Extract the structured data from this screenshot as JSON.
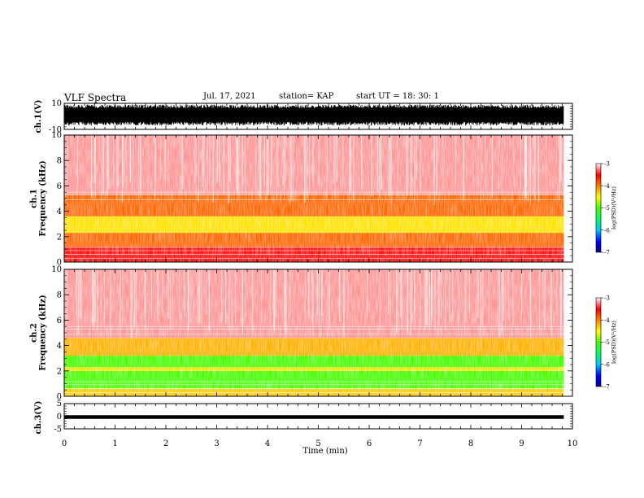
{
  "header": {
    "title": "VLF Spectra",
    "date": "Jul. 17, 2021",
    "station": "station= KAP",
    "start": "start UT =  18: 30: 1"
  },
  "chart_data": [
    {
      "type": "line",
      "panel": "ch1-waveform",
      "ylabel": "ch.1(V)",
      "ylim": [
        -10,
        10
      ],
      "yticks": [
        "10",
        "-10"
      ],
      "description_values": {
        "amplitude_range_V": [
          -7,
          9
        ]
      }
    },
    {
      "type": "heatmap",
      "panel": "ch1-spectrogram",
      "ylabel": "ch.1\nFrequency (kHz)",
      "ylim": [
        0,
        10
      ],
      "yticks": [
        "0",
        "2",
        "4",
        "6",
        "8",
        "10"
      ],
      "colorbar": {
        "label": "log(PSD)(V²/Hz)",
        "ticks": [
          "-3",
          "-4",
          "-5",
          "-6",
          "-7"
        ],
        "range": [
          -7,
          -3
        ]
      },
      "bands_khz": [
        {
          "from": 0.0,
          "to": 1.2,
          "level": -3.5
        },
        {
          "from": 1.2,
          "to": 2.3,
          "level": -3.9
        },
        {
          "from": 2.3,
          "to": 3.6,
          "level": -4.4
        },
        {
          "from": 3.6,
          "to": 5.3,
          "level": -3.9
        },
        {
          "from": 5.3,
          "to": 10.0,
          "level": -3.2
        }
      ]
    },
    {
      "type": "heatmap",
      "panel": "ch2-spectrogram",
      "ylabel": "ch.2\nFrequency (kHz)",
      "ylim": [
        0,
        10
      ],
      "yticks": [
        "0",
        "2",
        "4",
        "6",
        "8",
        "10"
      ],
      "colorbar": {
        "label": "log(PSD)(V²/Hz)",
        "ticks": [
          "-3",
          "-4",
          "-5",
          "-6",
          "-7"
        ],
        "range": [
          -7,
          -3
        ]
      },
      "bands_khz": [
        {
          "from": 0.0,
          "to": 0.6,
          "level": -4.3
        },
        {
          "from": 0.6,
          "to": 2.0,
          "level": -5.0
        },
        {
          "from": 2.0,
          "to": 2.3,
          "level": -4.4
        },
        {
          "from": 2.3,
          "to": 3.2,
          "level": -5.0
        },
        {
          "from": 3.2,
          "to": 4.6,
          "level": -4.2
        },
        {
          "from": 4.6,
          "to": 10.0,
          "level": -3.2
        }
      ]
    },
    {
      "type": "line",
      "panel": "ch3-waveform",
      "ylabel": "ch.3(V)",
      "ylim": [
        -5,
        5
      ],
      "yticks": [
        "5",
        "0",
        "-5"
      ],
      "description_values": {
        "amplitude_range_V": [
          -0.4,
          0.4
        ],
        "offset_V": 0
      }
    }
  ],
  "xaxis": {
    "label": "Time (min)",
    "xlim": [
      0,
      10
    ],
    "ticks": [
      "0",
      "1",
      "2",
      "3",
      "4",
      "5",
      "6",
      "7",
      "8",
      "9",
      "10"
    ],
    "data_end_min": 9.83
  }
}
